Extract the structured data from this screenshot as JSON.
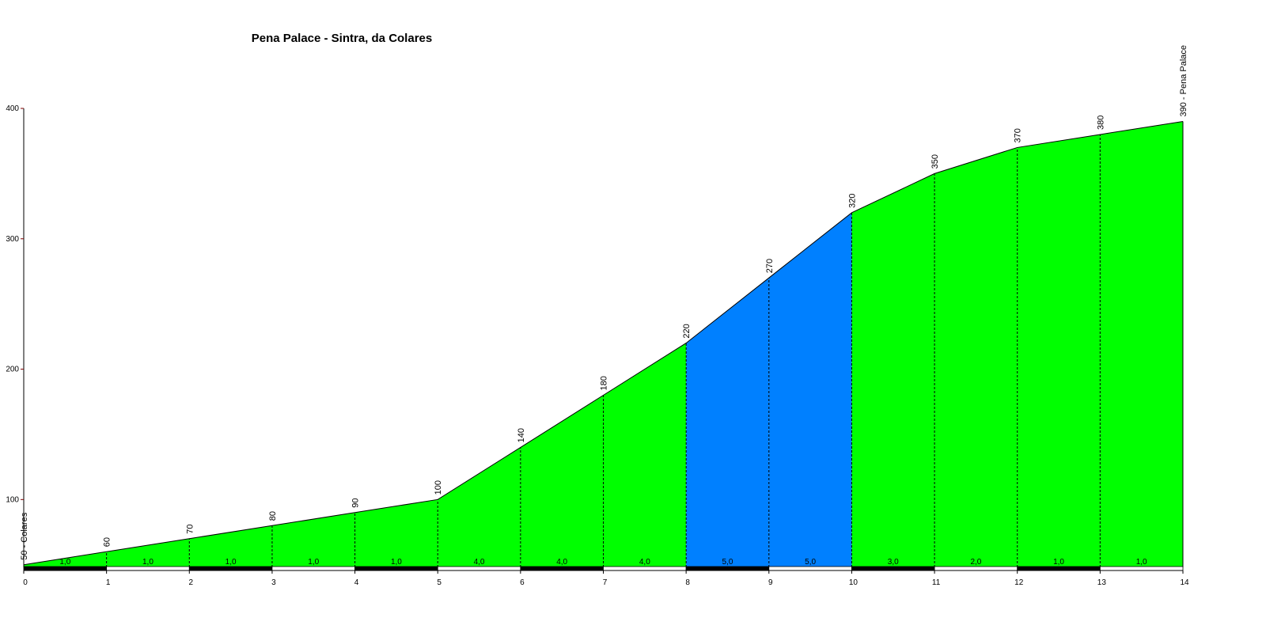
{
  "chart_data": {
    "type": "elevation-profile",
    "title": "Pena Palace - Sintra, da Colares",
    "x": [
      0,
      1,
      2,
      3,
      4,
      5,
      6,
      7,
      8,
      9,
      10,
      11,
      12,
      13,
      14
    ],
    "xlim": [
      0,
      14
    ],
    "xticks": [
      0,
      1,
      2,
      3,
      4,
      5,
      6,
      7,
      8,
      9,
      10,
      11,
      12,
      13,
      14
    ],
    "ylim": [
      48,
      400
    ],
    "yticks": [
      100,
      200,
      300,
      400
    ],
    "series": [
      {
        "values": [
          50,
          60,
          70,
          80,
          90,
          100,
          140,
          180,
          220,
          270,
          320,
          350,
          370,
          380,
          390
        ],
        "value_labels": [
          "50 - Colares",
          "60",
          "70",
          "80",
          "90",
          "100",
          "140",
          "180",
          "220",
          "270",
          "320",
          "350",
          "370",
          "380",
          "390 - Pena Palace"
        ],
        "color": "#000000"
      }
    ],
    "grades": {
      "values": [
        1.0,
        1.0,
        1.0,
        1.0,
        1.0,
        4.0,
        4.0,
        4.0,
        5.0,
        5.0,
        3.0,
        2.0,
        1.0,
        1.0
      ],
      "value_labels": [
        "1,0",
        "1,0",
        "1,0",
        "1,0",
        "1,0",
        "4,0",
        "4,0",
        "4,0",
        "5,0",
        "5,0",
        "3,0",
        "2,0",
        "1,0",
        "1,0"
      ],
      "colors": [
        "#00ff00",
        "#00ff00",
        "#00ff00",
        "#00ff00",
        "#00ff00",
        "#00ff00",
        "#00ff00",
        "#00ff00",
        "#0080ff",
        "#0080ff",
        "#00ff00",
        "#00ff00",
        "#00ff00",
        "#00ff00"
      ]
    }
  }
}
